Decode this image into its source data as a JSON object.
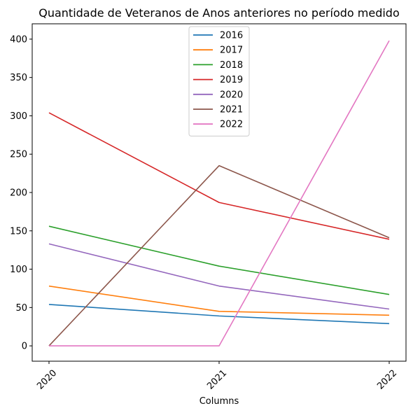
{
  "chart_data": {
    "type": "line",
    "title": "Quantidade de Veteranos de Anos anteriores no período medido",
    "xlabel": "Columns",
    "ylabel": "",
    "categories": [
      "2020",
      "2021",
      "2022"
    ],
    "ylim": [
      -20,
      420
    ],
    "yticks": [
      0,
      50,
      100,
      150,
      200,
      250,
      300,
      350,
      400
    ],
    "grid": false,
    "legend_position": "top-center",
    "series": [
      {
        "name": "2016",
        "color": "#1f77b4",
        "values": [
          54,
          39,
          29
        ]
      },
      {
        "name": "2017",
        "color": "#ff7f0e",
        "values": [
          78,
          45,
          40
        ]
      },
      {
        "name": "2018",
        "color": "#2ca02c",
        "values": [
          156,
          104,
          67
        ]
      },
      {
        "name": "2019",
        "color": "#d62728",
        "values": [
          304,
          187,
          139
        ]
      },
      {
        "name": "2020",
        "color": "#9467bd",
        "values": [
          133,
          78,
          48
        ]
      },
      {
        "name": "2021",
        "color": "#8c564b",
        "values": [
          0,
          235,
          141
        ]
      },
      {
        "name": "2022",
        "color": "#e377c2",
        "values": [
          0,
          0,
          398
        ]
      }
    ]
  }
}
